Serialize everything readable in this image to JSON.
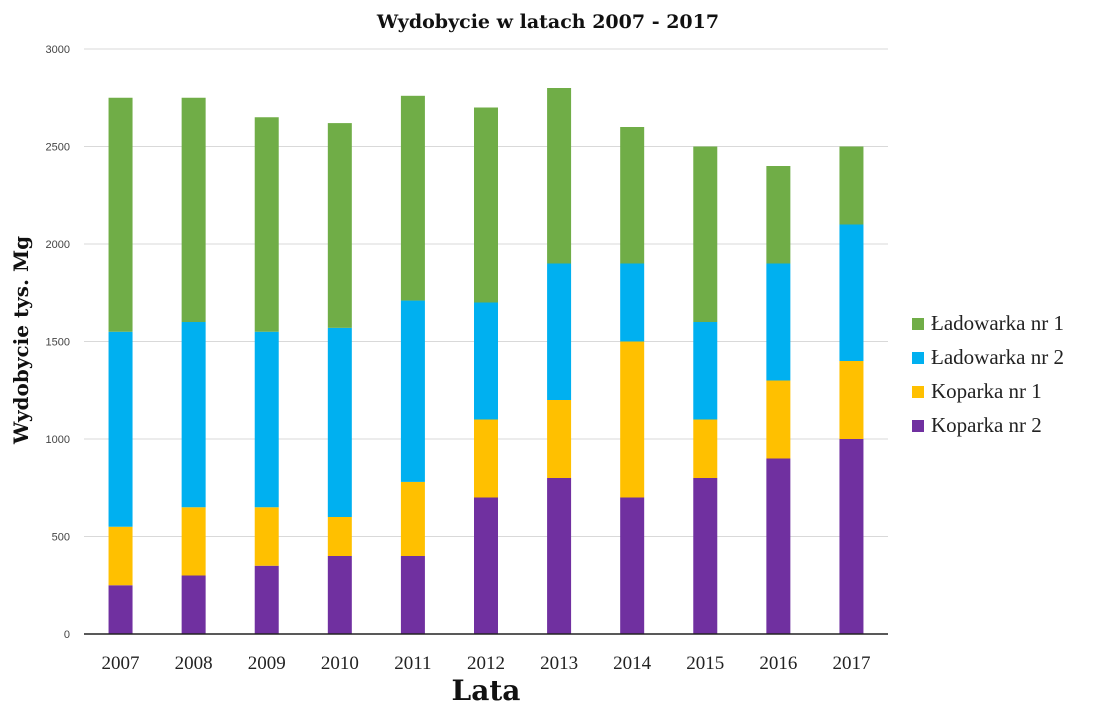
{
  "chart_data": {
    "type": "bar",
    "stacked": true,
    "title": "Wydobycie w latach 2007 - 2017",
    "xlabel": "Lata",
    "ylabel": "Wydobycie tys. Mg",
    "ylim": [
      0,
      3000
    ],
    "yticks": [
      "0",
      "500",
      "1000",
      "1500",
      "2000",
      "2500",
      "3000"
    ],
    "grid": true,
    "legend_position": "right",
    "categories": [
      "2007",
      "2008",
      "2009",
      "2010",
      "2011",
      "2012",
      "2013",
      "2014",
      "2015",
      "2016",
      "2017"
    ],
    "series": [
      {
        "name": "Koparka nr 2",
        "color": "#7030a0",
        "values": [
          250,
          300,
          350,
          400,
          400,
          700,
          800,
          700,
          800,
          900,
          1000
        ]
      },
      {
        "name": "Koparka nr 1",
        "color": "#ffc000",
        "values": [
          300,
          350,
          300,
          200,
          380,
          400,
          400,
          800,
          300,
          400,
          400
        ]
      },
      {
        "name": "Ładowarka nr 2",
        "color": "#00b0f0",
        "values": [
          1000,
          950,
          900,
          970,
          930,
          600,
          700,
          400,
          500,
          600,
          700
        ]
      },
      {
        "name": "Ładowarka nr 1",
        "color": "#70ad47",
        "values": [
          1200,
          1150,
          1100,
          1050,
          1050,
          1000,
          900,
          700,
          900,
          500,
          400
        ]
      }
    ],
    "legend_order": [
      "Ładowarka nr 1",
      "Ładowarka nr 2",
      "Koparka nr 1",
      "Koparka nr 2"
    ]
  }
}
